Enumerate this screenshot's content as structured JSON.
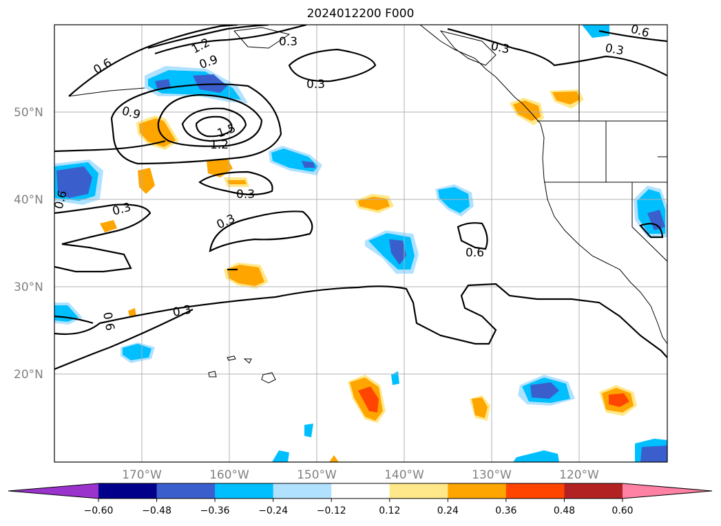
{
  "title": "2024012200 F000",
  "map": {
    "lon_ticks": [
      "170°W",
      "160°W",
      "150°W",
      "140°W",
      "130°W",
      "120°W"
    ],
    "lat_ticks": [
      "50°N",
      "40°N",
      "30°N",
      "20°N"
    ],
    "contour_labels": [
      "1.2",
      "0.9",
      "0.6",
      "0.3",
      "0.9",
      "1.5",
      "1.2",
      "0.3",
      "0.3",
      "0.6",
      "0.3",
      "0.3",
      "0.6",
      "0.3",
      "0.6",
      "0.3",
      "0.6",
      "0.3"
    ],
    "contour_line_color": "#000000"
  },
  "colorbar": {
    "tick_labels": [
      "−0.60",
      "−0.48",
      "−0.36",
      "−0.24",
      "−0.12",
      "0.12",
      "0.24",
      "0.36",
      "0.48",
      "0.60"
    ],
    "colors": [
      "#9933cc",
      "#00008b",
      "#3a5fcd",
      "#00bfff",
      "#b0e2ff",
      "#ffffff",
      "#ffe88a",
      "#ffa500",
      "#ff4500",
      "#b22222",
      "#ff82a5"
    ]
  }
}
